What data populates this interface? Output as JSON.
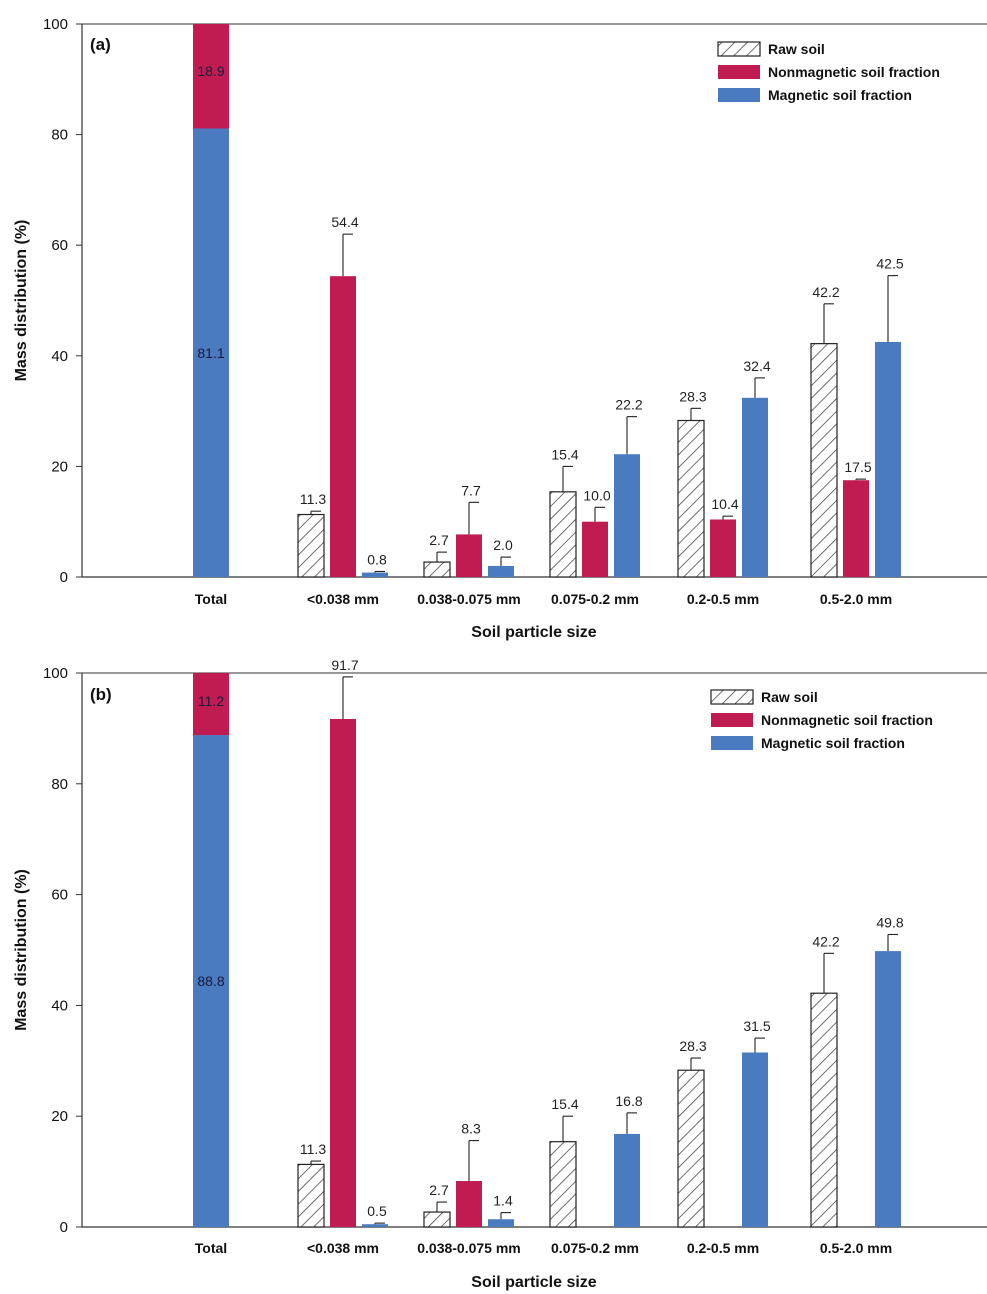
{
  "colors": {
    "raw": "#ffffff",
    "nonmagnetic": "#c01c52",
    "magnetic": "#4a7abf",
    "axis": "#333333",
    "hatch": "#333333"
  },
  "chart_data": [
    {
      "type": "bar",
      "panel_label": "(a)",
      "xlabel": "Soil particle size",
      "ylabel": "Mass distribution (%)",
      "ylim": [
        0,
        100
      ],
      "yticks": [
        0,
        20,
        40,
        60,
        80,
        100
      ],
      "legend_position": "top-right",
      "legend": [
        "Raw soil",
        "Nonmagnetic soil fraction",
        "Magnetic soil fraction"
      ],
      "total": {
        "label": "Total",
        "nonmagnetic": 18.9,
        "magnetic": 81.1
      },
      "categories": [
        "<0.038 mm",
        "0.038-0.075 mm",
        "0.075-0.2 mm",
        "0.2-0.5 mm",
        "0.5-2.0 mm"
      ],
      "series": [
        {
          "name": "Raw soil",
          "values": [
            11.3,
            2.7,
            15.4,
            28.3,
            42.2
          ],
          "errors": [
            0.6,
            1.8,
            4.6,
            2.2,
            7.2
          ]
        },
        {
          "name": "Nonmagnetic soil fraction",
          "values": [
            54.4,
            7.7,
            10.0,
            10.4,
            17.5
          ],
          "errors": [
            7.6,
            5.8,
            2.6,
            0.6,
            0.2
          ]
        },
        {
          "name": "Magnetic soil fraction",
          "values": [
            0.8,
            2.0,
            22.2,
            32.4,
            42.5
          ],
          "errors": [
            0.2,
            1.6,
            6.8,
            3.6,
            12.0
          ]
        }
      ]
    },
    {
      "type": "bar",
      "panel_label": "(b)",
      "xlabel": "Soil particle size",
      "ylabel": "Mass distribution (%)",
      "ylim": [
        0,
        100
      ],
      "yticks": [
        0,
        20,
        40,
        60,
        80,
        100
      ],
      "legend_position": "top-right",
      "legend": [
        "Raw soil",
        "Nonmagnetic soil fraction",
        "Magnetic soil fraction"
      ],
      "total": {
        "label": "Total",
        "nonmagnetic": 11.2,
        "magnetic": 88.8
      },
      "categories": [
        "<0.038 mm",
        "0.038-0.075 mm",
        "0.075-0.2 mm",
        "0.2-0.5 mm",
        "0.5-2.0 mm"
      ],
      "series": [
        {
          "name": "Raw soil",
          "values": [
            11.3,
            2.7,
            15.4,
            28.3,
            42.2
          ],
          "errors": [
            0.6,
            1.8,
            4.6,
            2.2,
            7.2
          ]
        },
        {
          "name": "Nonmagnetic soil fraction",
          "values": [
            91.7,
            8.3,
            null,
            null,
            null
          ],
          "errors": [
            7.6,
            7.3,
            null,
            null,
            null
          ]
        },
        {
          "name": "Magnetic soil fraction",
          "values": [
            0.5,
            1.4,
            16.8,
            31.5,
            49.8
          ],
          "errors": [
            0.2,
            1.2,
            3.8,
            2.6,
            3.0
          ]
        }
      ]
    }
  ]
}
